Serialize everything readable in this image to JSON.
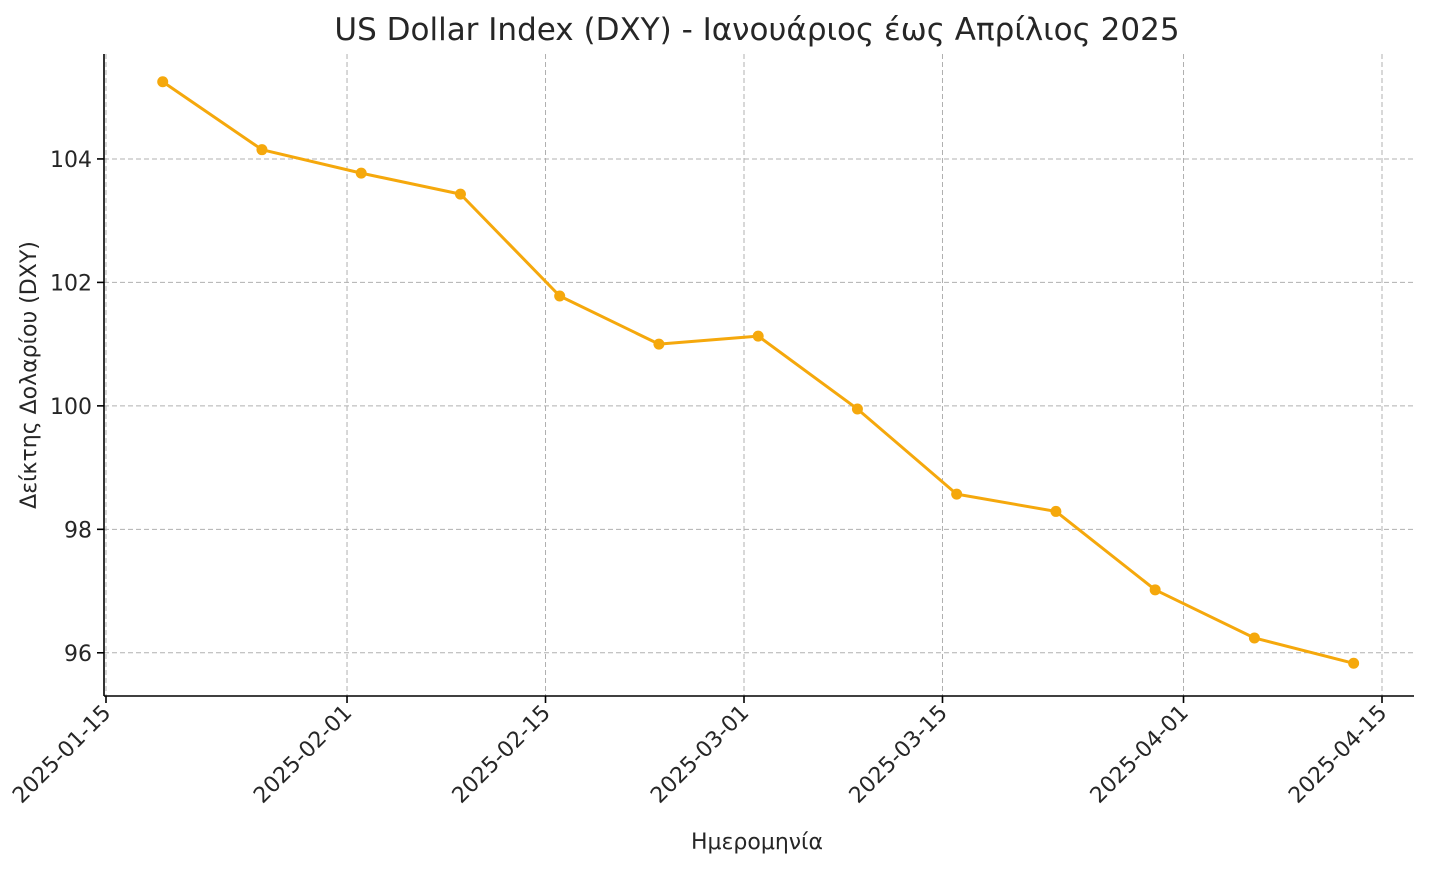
{
  "chart_data": {
    "type": "line",
    "title": "US Dollar Index (DXY) - Ιανουάριος έως Απρίλιος 2025",
    "xlabel": "Ημερομηνία",
    "ylabel": "Δείκτης Δολαρίου (DXY)",
    "x_ticks": [
      "2025-01-15",
      "2025-02-01",
      "2025-02-15",
      "2025-03-01",
      "2025-03-15",
      "2025-04-01",
      "2025-04-15"
    ],
    "y_ticks": [
      96,
      98,
      100,
      102,
      104
    ],
    "xlim": [
      "2025-01-15",
      "2025-04-15"
    ],
    "ylim": [
      95.3,
      105.7
    ],
    "grid": true,
    "series": [
      {
        "color": "#f5a80c",
        "marker": "circle",
        "x": [
          "2025-01-19",
          "2025-01-26",
          "2025-02-02",
          "2025-02-09",
          "2025-02-16",
          "2025-02-23",
          "2025-03-02",
          "2025-03-09",
          "2025-03-16",
          "2025-03-23",
          "2025-03-30",
          "2025-04-06",
          "2025-04-13"
        ],
        "y": [
          105.25,
          104.15,
          103.77,
          103.43,
          101.78,
          101.0,
          101.13,
          99.95,
          98.57,
          98.29,
          97.02,
          96.24,
          95.83
        ]
      }
    ]
  }
}
